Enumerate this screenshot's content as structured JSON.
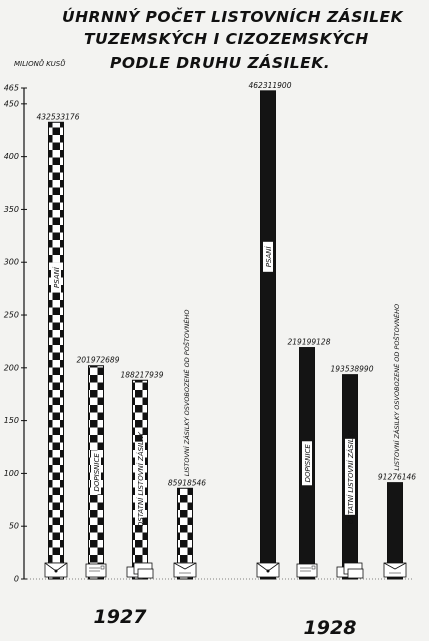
{
  "title_lines": [
    "ÚHRNNÝ POČET LISTOVNÍCH ZÁSILEK",
    "TUZEMSKÝCH I CIZOZEMSKÝCH",
    "PODLE DRUHU ZÁSILEK."
  ],
  "colors": {
    "background": "#f3f3f1",
    "ink": "#111111",
    "checker_light": "#ffffff",
    "bar_1928": "#141414"
  },
  "chart_data": {
    "type": "bar",
    "title": "ÚHRNNÝ POČET LISTOVNÍCH ZÁSILEK TUZEMSKÝCH I CIZOZEMSKÝCH PODLE DRUHU ZÁSILEK.",
    "ylabel": "MILIONŮ KUSŮ",
    "ylim": [
      0,
      465
    ],
    "yticks": [
      0,
      50,
      100,
      150,
      200,
      250,
      300,
      350,
      400,
      450,
      465
    ],
    "grid": false,
    "groups": [
      "1927",
      "1928"
    ],
    "categories": [
      "PSANÍ",
      "DOPISNICE",
      "OSTATNÍ LISTOVNÍ ZÁSILKY",
      "LISTOVNÍ ZÁSILKY OSVOBOZENÉ OD POŠTOVNÉHO"
    ],
    "series": [
      {
        "name": "1927",
        "pattern": "checkerboard",
        "values": [
          432533176,
          201972689,
          188217939,
          85918546
        ],
        "value_labels": [
          "432533176",
          "201972689",
          "188217939",
          "85918546"
        ]
      },
      {
        "name": "1928",
        "pattern": "solid-black",
        "values": [
          462311900,
          219199128,
          193538990,
          91276146
        ],
        "value_labels": [
          "462311900",
          "219199128",
          "193538990",
          "91276146"
        ]
      }
    ],
    "category_icons": [
      "envelope-icon",
      "postcard-icon",
      "parcel-stack-icon",
      "official-envelope-icon"
    ]
  }
}
